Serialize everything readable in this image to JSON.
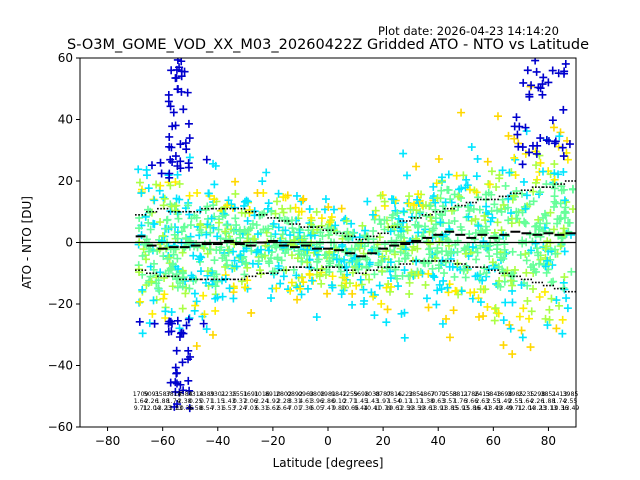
{
  "plot_date_label": "Plot date: 2026-04-23 14:14:20",
  "chart_data": {
    "type": "scatter",
    "title": "S-O3M_GOME_VOD_XX_M03_20260422Z Gridded ATO - NTO vs Latitude",
    "xlabel": "Latitude [degrees]",
    "ylabel": "ATO - NTO [DU]",
    "xlim": [
      -90,
      90
    ],
    "ylim": [
      -60,
      60
    ],
    "xticks": [
      -80,
      -60,
      -40,
      -20,
      0,
      20,
      40,
      60,
      80
    ],
    "xtick_labels": [
      "−80",
      "−60",
      "−40",
      "−20",
      "0",
      "20",
      "40",
      "60",
      "80"
    ],
    "yticks": [
      -60,
      -40,
      -20,
      0,
      20,
      40,
      60
    ],
    "ytick_labels": [
      "−60",
      "−40",
      "−20",
      "0",
      "20",
      "40",
      "60"
    ],
    "grid": false,
    "marker": "+",
    "point_colors": [
      "#0000cd",
      "#00e5ff",
      "#66ff99",
      "#aaff44",
      "#ffd700",
      "#ffee00"
    ],
    "zero_line": 0,
    "bin_mean": {
      "lat": [
        -68,
        -64,
        -60,
        -56,
        -52,
        -48,
        -44,
        -40,
        -36,
        -32,
        -28,
        -24,
        -20,
        -16,
        -12,
        -8,
        -4,
        0,
        4,
        8,
        12,
        16,
        20,
        24,
        28,
        32,
        36,
        40,
        44,
        48,
        52,
        56,
        60,
        64,
        68,
        72,
        76,
        80,
        84,
        88
      ],
      "value": [
        2,
        -1,
        -2,
        -1.5,
        -1.5,
        -1,
        -0.5,
        -0.5,
        0.5,
        -0.5,
        -1,
        0,
        0.5,
        -1,
        -1.5,
        -1,
        -2,
        -2,
        -2.5,
        -3.5,
        -4.5,
        -3.5,
        -2,
        -1,
        -0.5,
        0.5,
        1.5,
        2.5,
        3.5,
        2.5,
        1.5,
        2.5,
        1.5,
        2.5,
        3.5,
        3,
        2.5,
        3,
        2.5,
        3
      ]
    },
    "bin_std": {
      "lat": [
        -68,
        -64,
        -60,
        -56,
        -52,
        -48,
        -44,
        -40,
        -36,
        -32,
        -28,
        -24,
        -20,
        -16,
        -12,
        -8,
        -4,
        0,
        4,
        8,
        12,
        16,
        20,
        24,
        28,
        32,
        36,
        40,
        44,
        48,
        52,
        56,
        60,
        64,
        68,
        72,
        76,
        80,
        84,
        88
      ],
      "upper": [
        9,
        10,
        11,
        10,
        10,
        10,
        11,
        11,
        11,
        11,
        10,
        9,
        8,
        7,
        6,
        5,
        5,
        4,
        3,
        2,
        1,
        2,
        3,
        5,
        7,
        8,
        9,
        10,
        11,
        12,
        13,
        14,
        14,
        15,
        16,
        17,
        18,
        18,
        19,
        20
      ],
      "lower": [
        -9,
        -10,
        -11,
        -11,
        -12,
        -12,
        -12,
        -12,
        -12,
        -12,
        -11,
        -10,
        -10,
        -9,
        -8,
        -8,
        -9,
        -8,
        -8,
        -9,
        -10,
        -9,
        -8,
        -8,
        -7,
        -6,
        -6,
        -6,
        -6,
        -7,
        -8,
        -8,
        -9,
        -10,
        -11,
        -12,
        -13,
        -14,
        -15,
        -16
      ]
    },
    "bin_counts": {
      "lat": [
        -68,
        -64,
        -60,
        -56,
        -52,
        -48,
        -44,
        -40,
        -36,
        -32,
        -28,
        -24,
        -20,
        -16,
        -12,
        -8,
        -4,
        0,
        4,
        8,
        12,
        16,
        20,
        24,
        28,
        32,
        36,
        40,
        44,
        48,
        52,
        56,
        60,
        64,
        68,
        72,
        76,
        80,
        84,
        88
      ],
      "row1": [
        "1709",
        "5091",
        "3587",
        "3814",
        "3584",
        "3314",
        "3389",
        "3301",
        "2235",
        "2551",
        "1691",
        "1016",
        "8910",
        "2802",
        "0892",
        "0963",
        "9808",
        "1981",
        "9842",
        "1259",
        "5698",
        "1038",
        "0787",
        "0816",
        "4222",
        "3851",
        "4867",
        "7072",
        "0553",
        "8811",
        "2786",
        "2413",
        "5843",
        "1698",
        "3985",
        "2235",
        "1298",
        "3851",
        "2413",
        "3985"
      ],
      "row2": [
        "1.64",
        "2.26",
        "1.88",
        "1.74",
        "2.38",
        "0.25",
        "0.71",
        "1.15",
        "1.43",
        "0.37",
        "2.06",
        "2.24",
        "1.92",
        "2.28",
        "3.31",
        "4.61",
        "3.96",
        "2.86",
        "0.10",
        "2.71",
        "1.45",
        "1.43",
        "1.97",
        "1.54",
        "0.17",
        "1.17",
        "1.38",
        "0.63",
        "3.57",
        "1.76",
        "3.66",
        "2.63",
        "2.55",
        "1.49",
        "2.55",
        "1.64",
        "2.26",
        "1.88",
        "1.74",
        "2.55"
      ],
      "row3": [
        "9.71",
        "12.04",
        "13.23",
        "13.13",
        "10.36",
        "6.58",
        "8.54",
        "7.31",
        "6.53",
        "7.24",
        "7.03",
        "6.31",
        "6.62",
        "6.64",
        "7.01",
        "7.30",
        "6.05",
        "7.47",
        "9.80",
        "10.65",
        "9.44",
        "10.41",
        "10.79",
        "10.67",
        "12.59",
        "13.59",
        "13.61",
        "13.91",
        "13.85",
        "15.93",
        "15.86",
        "16.41",
        "13.49",
        "13.49",
        "9.71",
        "12.04",
        "13.23",
        "13.13",
        "10.36",
        "13.49"
      ]
    }
  }
}
